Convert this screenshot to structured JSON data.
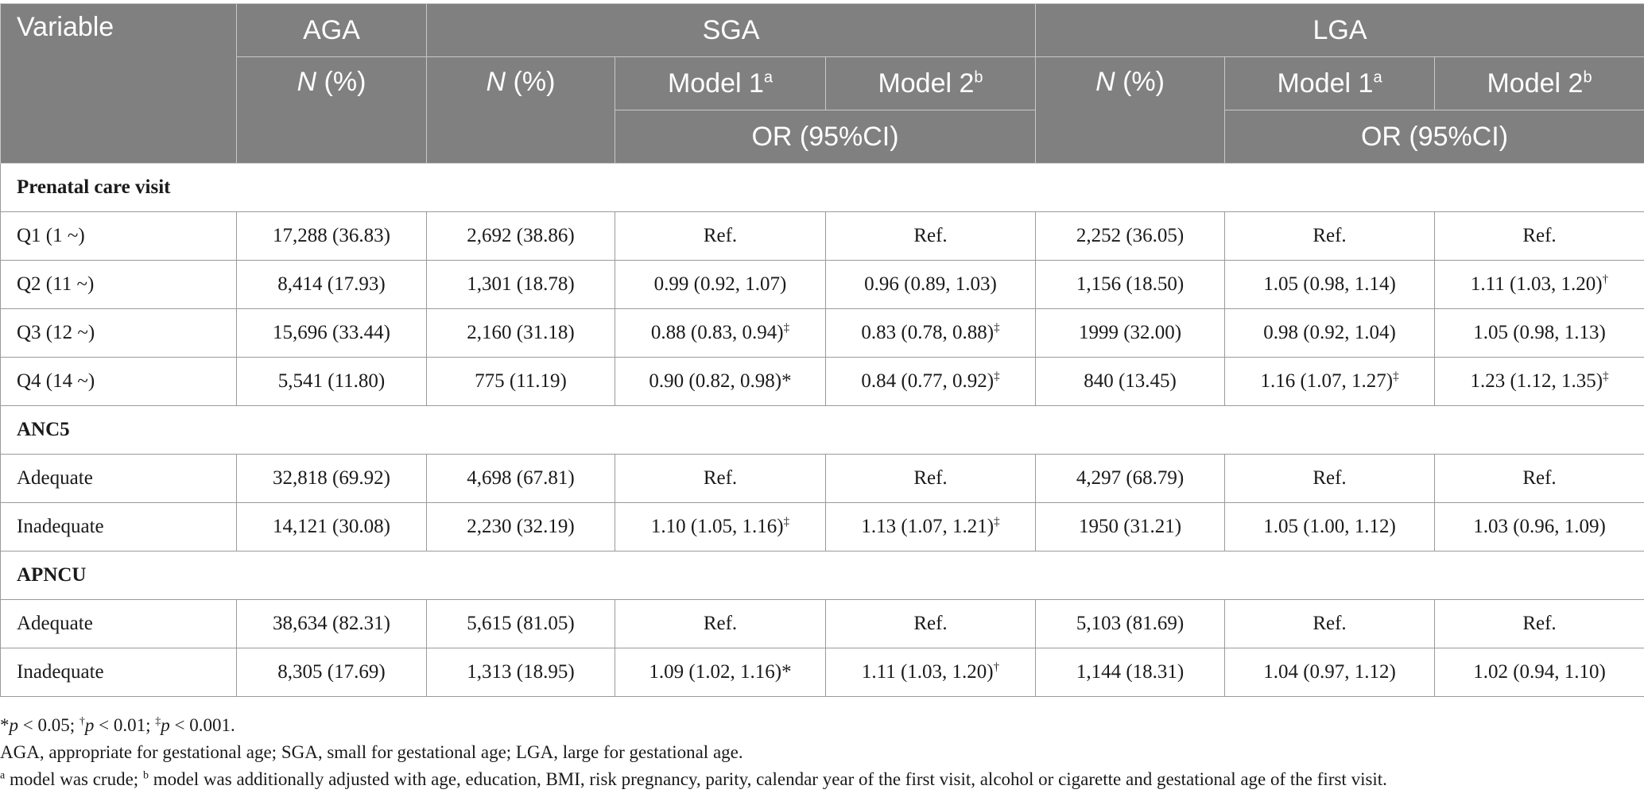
{
  "header": {
    "variable": "Variable",
    "aga": "AGA",
    "sga": "SGA",
    "lga": "LGA",
    "n_label": "N",
    "pct_label": " (%)",
    "model1": "Model 1",
    "model2": "Model 2",
    "sup_a": "a",
    "sup_b": "b",
    "or_label": "OR (95%CI)"
  },
  "sections": [
    {
      "title": "Prenatal care visit",
      "rows": [
        {
          "label": "Q1 (1 ~)",
          "aga": "17,288 (36.83)",
          "sga_n": "2,692 (38.86)",
          "sga_m1": "Ref.",
          "sga_m1_sig": "",
          "sga_m2": "Ref.",
          "sga_m2_sig": "",
          "lga_n": "2,252 (36.05)",
          "lga_m1": "Ref.",
          "lga_m1_sig": "",
          "lga_m2": "Ref.",
          "lga_m2_sig": ""
        },
        {
          "label": "Q2 (11 ~)",
          "aga": "8,414 (17.93)",
          "sga_n": "1,301 (18.78)",
          "sga_m1": "0.99 (0.92, 1.07)",
          "sga_m1_sig": "",
          "sga_m2": "0.96 (0.89, 1.03)",
          "sga_m2_sig": "",
          "lga_n": "1,156 (18.50)",
          "lga_m1": "1.05 (0.98, 1.14)",
          "lga_m1_sig": "",
          "lga_m2": "1.11 (1.03, 1.20)",
          "lga_m2_sig": "†"
        },
        {
          "label": "Q3 (12 ~)",
          "aga": "15,696 (33.44)",
          "sga_n": "2,160 (31.18)",
          "sga_m1": "0.88 (0.83, 0.94)",
          "sga_m1_sig": "‡",
          "sga_m2": "0.83 (0.78, 0.88)",
          "sga_m2_sig": "‡",
          "lga_n": "1999 (32.00)",
          "lga_m1": "0.98 (0.92, 1.04)",
          "lga_m1_sig": "",
          "lga_m2": "1.05 (0.98, 1.13)",
          "lga_m2_sig": ""
        },
        {
          "label": "Q4 (14 ~)",
          "aga": "5,541 (11.80)",
          "sga_n": "775 (11.19)",
          "sga_m1": "0.90 (0.82, 0.98)*",
          "sga_m1_sig": "",
          "sga_m2": "0.84 (0.77, 0.92)",
          "sga_m2_sig": "‡",
          "lga_n": "840 (13.45)",
          "lga_m1": "1.16 (1.07, 1.27)",
          "lga_m1_sig": "‡",
          "lga_m2": "1.23 (1.12, 1.35)",
          "lga_m2_sig": "‡"
        }
      ]
    },
    {
      "title": "ANC5",
      "rows": [
        {
          "label": "Adequate",
          "aga": "32,818 (69.92)",
          "sga_n": "4,698 (67.81)",
          "sga_m1": "Ref.",
          "sga_m1_sig": "",
          "sga_m2": "Ref.",
          "sga_m2_sig": "",
          "lga_n": "4,297 (68.79)",
          "lga_m1": "Ref.",
          "lga_m1_sig": "",
          "lga_m2": "Ref.",
          "lga_m2_sig": ""
        },
        {
          "label": "Inadequate",
          "aga": "14,121 (30.08)",
          "sga_n": "2,230 (32.19)",
          "sga_m1": "1.10 (1.05, 1.16)",
          "sga_m1_sig": "‡",
          "sga_m2": "1.13 (1.07, 1.21)",
          "sga_m2_sig": "‡",
          "lga_n": "1950 (31.21)",
          "lga_m1": "1.05 (1.00, 1.12)",
          "lga_m1_sig": "",
          "lga_m2": "1.03 (0.96, 1.09)",
          "lga_m2_sig": ""
        }
      ]
    },
    {
      "title": "APNCU",
      "rows": [
        {
          "label": "Adequate",
          "aga": "38,634 (82.31)",
          "sga_n": "5,615 (81.05)",
          "sga_m1": "Ref.",
          "sga_m1_sig": "",
          "sga_m2": "Ref.",
          "sga_m2_sig": "",
          "lga_n": "5,103 (81.69)",
          "lga_m1": "Ref.",
          "lga_m1_sig": "",
          "lga_m2": "Ref.",
          "lga_m2_sig": ""
        },
        {
          "label": "Inadequate",
          "aga": "8,305 (17.69)",
          "sga_n": "1,313 (18.95)",
          "sga_m1": "1.09 (1.02, 1.16)*",
          "sga_m1_sig": "",
          "sga_m2": "1.11 (1.03, 1.20)",
          "sga_m2_sig": "†",
          "lga_n": "1,144 (18.31)",
          "lga_m1": "1.04 (0.97, 1.12)",
          "lga_m1_sig": "",
          "lga_m2": "1.02 (0.94, 1.10)",
          "lga_m2_sig": ""
        }
      ]
    }
  ],
  "notes": {
    "p1_mark": "*",
    "p1_rest": " < 0.05; ",
    "p2_mark": "†",
    "p2_rest": " < 0.01; ",
    "p3_mark": "‡",
    "p3_rest": " < 0.001.",
    "p_letter": "p",
    "abbreviations": "AGA, appropriate for gestational age; SGA, small for gestational age; LGA, large for gestational age.",
    "model_a_mark": "a",
    "model_a_text": " model was crude; ",
    "model_b_mark": "b",
    "model_b_text": " model was additionally adjusted with age, education, BMI, risk pregnancy, parity, calendar year of the first visit, alcohol or cigarette and gestational age of the first visit."
  }
}
